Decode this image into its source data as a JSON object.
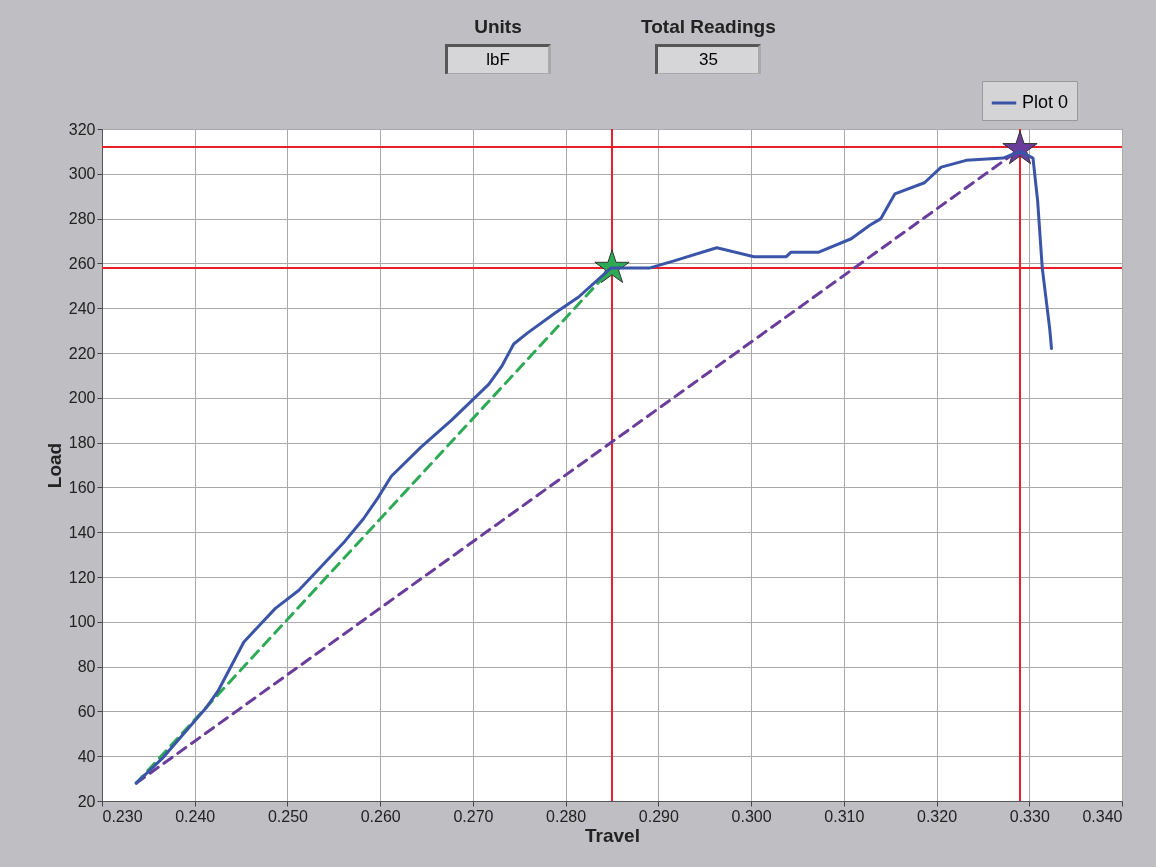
{
  "chart_data": {
    "type": "line",
    "xlabel": "Travel",
    "ylabel": "Load",
    "annotations": [
      "Units",
      "lbF",
      "Total Readings",
      "35"
    ],
    "xlim": [
      0.23,
      0.34
    ],
    "xticks": [
      {
        "value": 0.23,
        "label": "0.230"
      },
      {
        "value": 0.24,
        "label": "0.240"
      },
      {
        "value": 0.25,
        "label": "0.250"
      },
      {
        "value": 0.26,
        "label": "0.260"
      },
      {
        "value": 0.27,
        "label": "0.270"
      },
      {
        "value": 0.28,
        "label": "0.280"
      },
      {
        "value": 0.29,
        "label": "0.290"
      },
      {
        "value": 0.3,
        "label": "0.300"
      },
      {
        "value": 0.31,
        "label": "0.310"
      },
      {
        "value": 0.32,
        "label": "0.320"
      },
      {
        "value": 0.33,
        "label": "0.330"
      },
      {
        "value": 0.34,
        "label": "0.340"
      }
    ],
    "ylim": [
      20,
      320
    ],
    "yticks": [
      20,
      40,
      60,
      80,
      100,
      120,
      140,
      160,
      180,
      200,
      220,
      240,
      260,
      280,
      300,
      320
    ],
    "grid": true,
    "legend": "top right",
    "ref_lines": [
      {
        "axis": "y",
        "value": 312,
        "color": "#e8202a"
      },
      {
        "axis": "y",
        "value": 258,
        "color": "#e8202a"
      },
      {
        "axis": "x",
        "value": 0.285,
        "color": "#e8202a"
      },
      {
        "axis": "x",
        "value": 0.329,
        "color": "#e8202a"
      }
    ],
    "series": [
      {
        "type": "scatter",
        "marker": "star",
        "color": "#2eaa55",
        "x": [
          0.285
        ],
        "values": [
          258
        ]
      },
      {
        "type": "scatter",
        "marker": "star",
        "color": "#6a3d9a",
        "x": [
          0.329
        ],
        "values": [
          311
        ]
      },
      {
        "color": "#2eaa55",
        "line_style": "dashed",
        "x": [
          0.2337,
          0.285
        ],
        "values": [
          28,
          258
        ]
      },
      {
        "color": "#6a3d9a",
        "line_style": "dashed",
        "x": [
          0.2337,
          0.329
        ],
        "values": [
          28,
          311
        ]
      },
      {
        "name": "Plot 0",
        "color": "#3a55a8",
        "line_style": "solid",
        "x": [
          0.2337,
          0.2365,
          0.2413,
          0.2425,
          0.2453,
          0.2487,
          0.2512,
          0.2535,
          0.2562,
          0.2582,
          0.2597,
          0.2612,
          0.2644,
          0.2677,
          0.2717,
          0.2731,
          0.2744,
          0.2759,
          0.2789,
          0.2814,
          0.2849,
          0.2891,
          0.2916,
          0.2963,
          0.3003,
          0.3038,
          0.3043,
          0.3073,
          0.3108,
          0.3128,
          0.314,
          0.3155,
          0.3187,
          0.3205,
          0.3232,
          0.3272,
          0.329,
          0.3304,
          0.3309,
          0.3314,
          0.3322,
          0.3324
        ],
        "values": [
          28,
          39,
          62,
          69,
          91,
          106,
          114,
          124,
          136,
          146,
          155,
          165,
          178,
          190,
          206,
          214,
          224,
          229,
          238,
          245,
          258,
          258,
          261,
          267,
          263,
          263,
          265,
          265,
          271,
          277,
          280,
          291,
          296,
          303,
          306,
          307,
          310,
          307,
          288,
          258,
          231,
          222
        ]
      }
    ]
  }
}
